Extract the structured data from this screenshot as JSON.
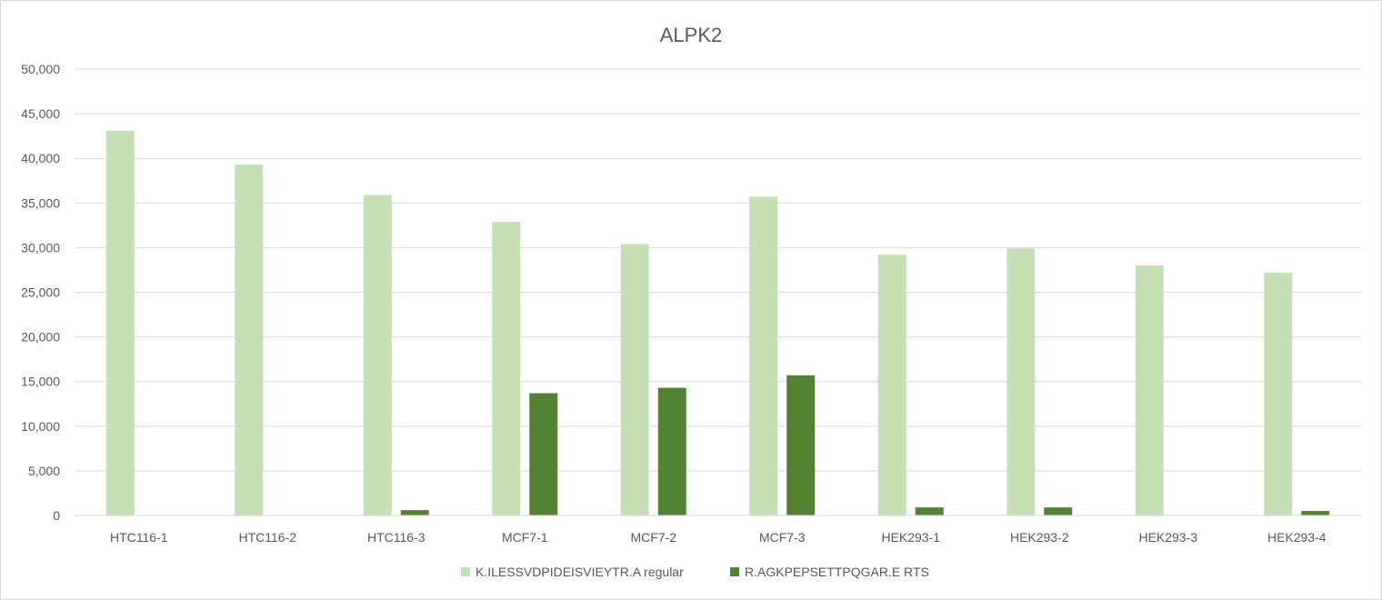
{
  "chart_data": {
    "type": "bar",
    "title": "ALPK2",
    "xlabel": "",
    "ylabel": "",
    "categories": [
      "HTC116-1",
      "HTC116-2",
      "HTC116-3",
      "MCF7-1",
      "MCF7-2",
      "MCF7-3",
      "HEK293-1",
      "HEK293-2",
      "HEK293-3",
      "HEK293-4"
    ],
    "series": [
      {
        "name": "K.ILESSVDPIDEISVIEYTR.A regular",
        "color": "#c5e0b4",
        "values": [
          43100,
          39300,
          35900,
          32900,
          30400,
          35700,
          29200,
          29900,
          28000,
          27200
        ]
      },
      {
        "name": "R.AGKPEPSETTPQGAR.E RTS",
        "color": "#548235",
        "values": [
          0,
          0,
          600,
          13700,
          14300,
          15700,
          900,
          900,
          0,
          500
        ]
      }
    ],
    "ylim": [
      0,
      50000
    ],
    "yticks": [
      "0",
      "5,000",
      "10,000",
      "15,000",
      "20,000",
      "25,000",
      "30,000",
      "35,000",
      "40,000",
      "45,000",
      "50,000"
    ],
    "grid": true,
    "legend_position": "bottom"
  }
}
